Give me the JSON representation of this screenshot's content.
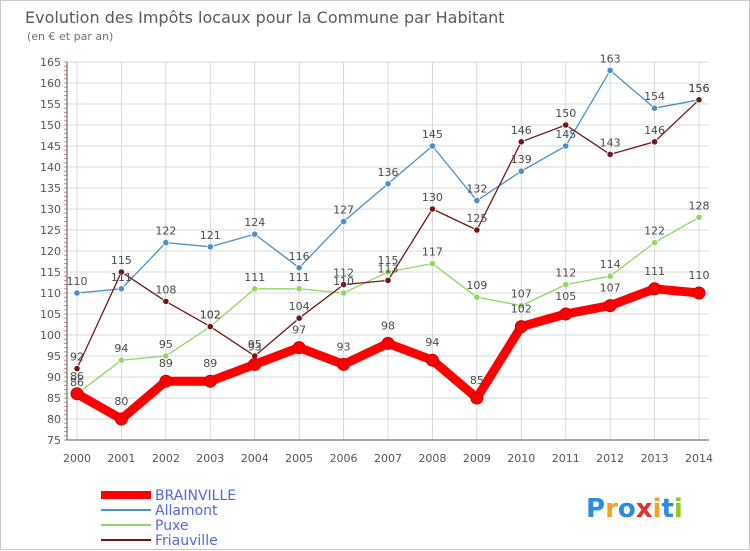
{
  "chart_data": {
    "type": "line",
    "title": "Evolution des Impôts locaux pour la Commune par Habitant",
    "subtitle": "(en € et par an)",
    "x": [
      2000,
      2001,
      2002,
      2003,
      2004,
      2005,
      2006,
      2007,
      2008,
      2009,
      2010,
      2011,
      2012,
      2013,
      2014
    ],
    "ylim": [
      75,
      165
    ],
    "yticks": [
      75,
      80,
      85,
      90,
      95,
      100,
      105,
      110,
      115,
      120,
      125,
      130,
      135,
      140,
      145,
      150,
      155,
      160,
      165
    ],
    "grid": true,
    "legend_position": "bottom-left",
    "series": [
      {
        "name": "BRAINVILLE",
        "color": "#ff0000",
        "values": [
          86,
          80,
          89,
          89,
          93,
          97,
          93,
          98,
          94,
          85,
          102,
          105,
          107,
          111,
          110
        ]
      },
      {
        "name": "Allamont",
        "color": "#4a90c8",
        "values": [
          110,
          111,
          122,
          121,
          124,
          116,
          127,
          136,
          145,
          132,
          139,
          145,
          163,
          154,
          156
        ]
      },
      {
        "name": "Puxe",
        "color": "#90d860",
        "values": [
          86,
          94,
          95,
          102,
          111,
          111,
          110,
          115,
          117,
          109,
          107,
          112,
          114,
          122,
          128
        ]
      },
      {
        "name": "Friauville",
        "color": "#701818",
        "values": [
          92,
          115,
          108,
          102,
          95,
          104,
          112,
          113,
          130,
          125,
          146,
          150,
          143,
          146,
          156
        ]
      }
    ]
  },
  "watermark": "Proxiti",
  "colors": {
    "text": "#555555",
    "title": "#5a5a5a",
    "grid": "#d8d8d8",
    "legend_text": "#5566dd"
  }
}
